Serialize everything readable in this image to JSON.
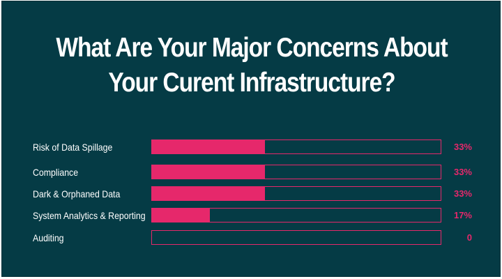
{
  "title_lines": [
    "What Are Your Major Concerns About",
    "Your Curent Infrastructure?"
  ],
  "colors": {
    "background": "#053b45",
    "bar": "#e6286b",
    "text": "#ffffff",
    "value_text": "#e6286b"
  },
  "chart_data": {
    "type": "bar",
    "orientation": "horizontal",
    "title": "What Are Your Major Concerns About Your Curent Infrastructure?",
    "categories": [
      "Risk of Data Spillage",
      "Compliance",
      "Dark & Orphaned Data",
      "System Analytics & Reporting",
      "Auditing"
    ],
    "values": [
      33,
      33,
      33,
      17,
      0
    ],
    "value_labels": [
      "33%",
      "33%",
      "33%",
      "17%",
      "0"
    ],
    "xlim": [
      0,
      85
    ],
    "grid": false,
    "legend": "none"
  }
}
